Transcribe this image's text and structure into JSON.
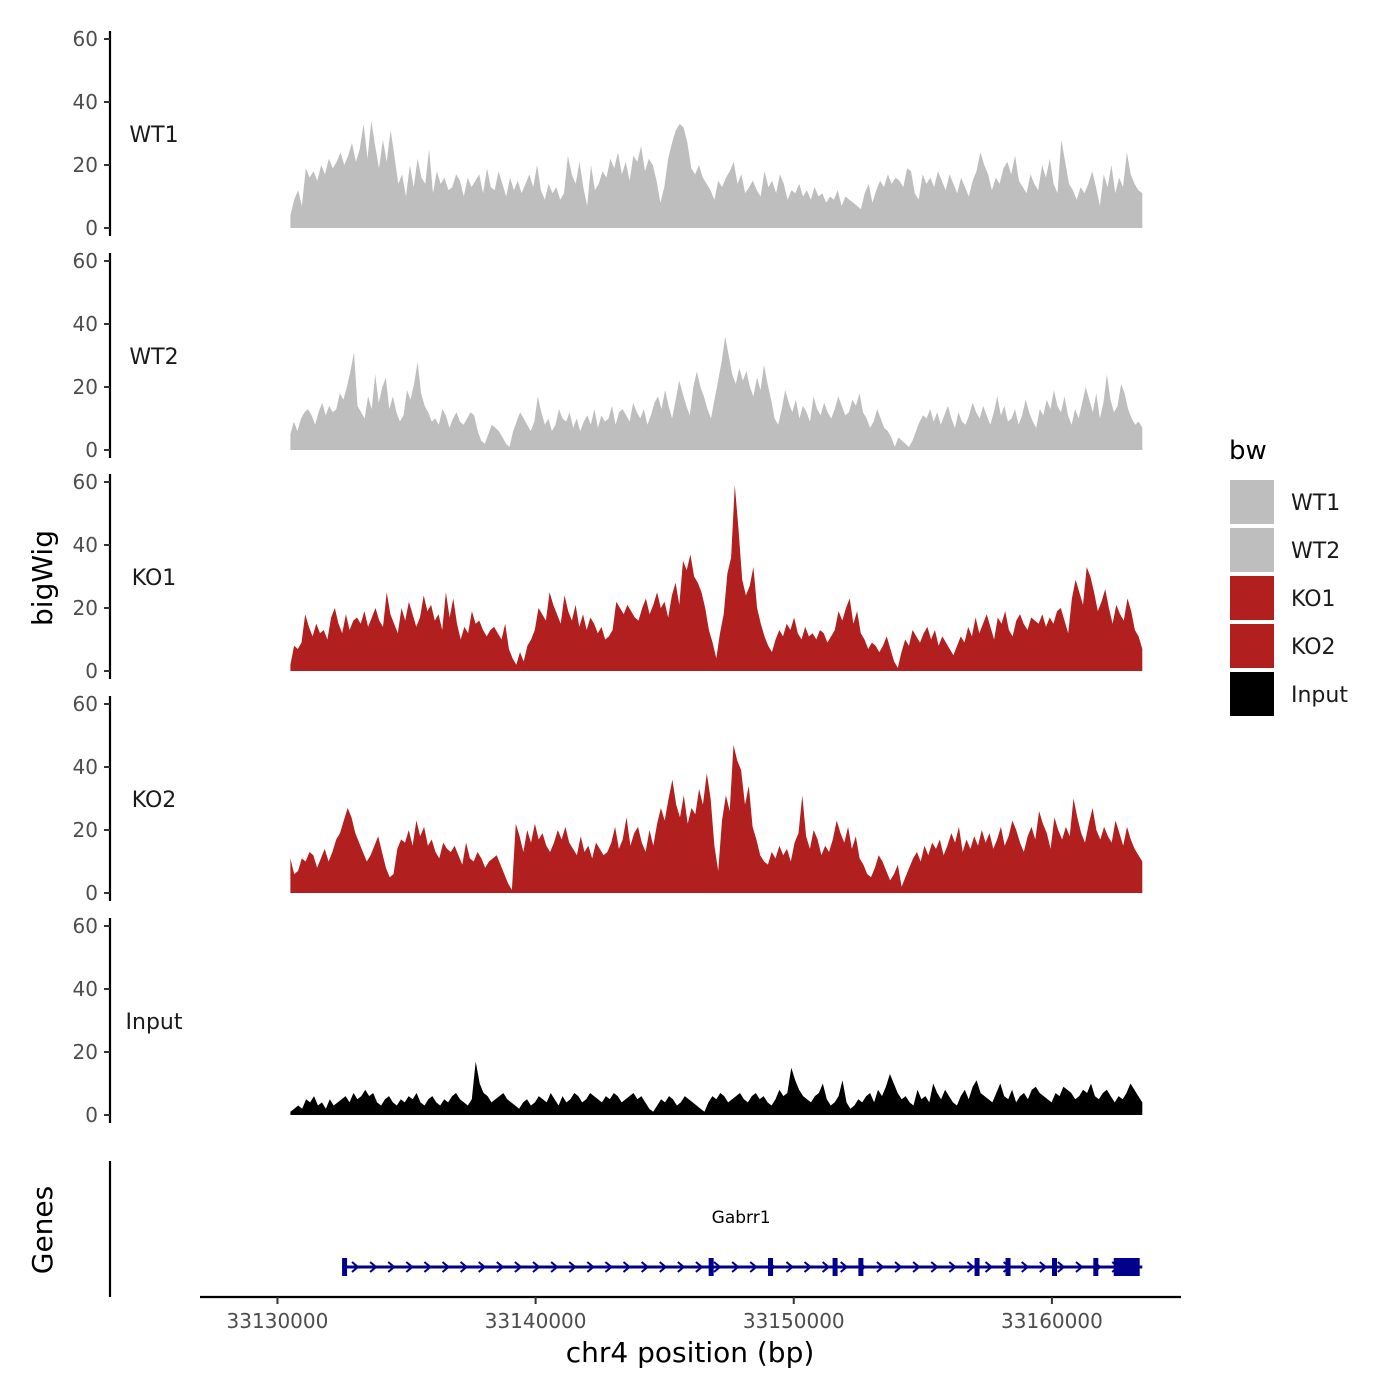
{
  "chart_data": {
    "type": "area",
    "title": "",
    "xlabel": "chr4 position (bp)",
    "ylabel": "bigWig",
    "genes_label": "Genes",
    "chromosome": "chr4",
    "xlim": [
      33127000,
      33165000
    ],
    "x_ticks": [
      33130000,
      33140000,
      33150000,
      33160000
    ],
    "x_tick_labels": [
      "33130000",
      "33140000",
      "33150000",
      "33160000"
    ],
    "ylim": [
      0,
      60
    ],
    "y_ticks": [
      0,
      20,
      40,
      60
    ],
    "y_tick_labels": [
      "0",
      "20",
      "40",
      "60"
    ],
    "track_start": 33130500,
    "track_end": 33163500,
    "legend": {
      "title": "bw",
      "position": "right",
      "entries": [
        {
          "label": "WT1",
          "color": "#bebebe"
        },
        {
          "label": "WT2",
          "color": "#bebebe"
        },
        {
          "label": "KO1",
          "color": "#b21f1f"
        },
        {
          "label": "KO2",
          "color": "#b21f1f"
        },
        {
          "label": "Input",
          "color": "#000000"
        }
      ]
    },
    "series": [
      {
        "name": "WT1",
        "color": "#bebebe",
        "values": [
          4,
          9,
          12,
          7,
          19,
          16,
          18,
          15,
          20,
          17,
          22,
          19,
          21,
          24,
          20,
          23,
          27,
          21,
          25,
          33,
          22,
          34,
          26,
          19,
          28,
          21,
          31,
          23,
          14,
          17,
          10,
          20,
          13,
          22,
          16,
          14,
          25,
          11,
          18,
          14,
          16,
          12,
          13,
          17,
          15,
          10,
          16,
          13,
          15,
          17,
          11,
          19,
          13,
          12,
          18,
          14,
          10,
          16,
          12,
          15,
          11,
          14,
          17,
          13,
          20,
          12,
          9,
          14,
          11,
          13,
          9,
          11,
          23,
          17,
          14,
          21,
          13,
          7,
          20,
          12,
          14,
          18,
          16,
          22,
          19,
          24,
          17,
          21,
          15,
          23,
          21,
          26,
          18,
          22,
          20,
          15,
          8,
          13,
          22,
          27,
          31,
          33,
          32,
          27,
          19,
          17,
          20,
          16,
          14,
          12,
          9,
          15,
          13,
          16,
          18,
          21,
          14,
          17,
          11,
          13,
          15,
          12,
          10,
          18,
          13,
          15,
          11,
          17,
          14,
          9,
          12,
          11,
          14,
          10,
          12,
          9,
          13,
          10,
          11,
          8,
          10,
          9,
          12,
          7,
          10,
          9,
          8,
          7,
          6,
          11,
          14,
          8,
          12,
          15,
          13,
          17,
          14,
          16,
          15,
          13,
          19,
          18,
          11,
          9,
          17,
          14,
          16,
          13,
          18,
          15,
          12,
          17,
          14,
          11,
          16,
          13,
          10,
          15,
          18,
          24,
          20,
          17,
          12,
          16,
          14,
          19,
          21,
          17,
          23,
          15,
          13,
          11,
          17,
          14,
          12,
          20,
          16,
          22,
          14,
          11,
          28,
          21,
          14,
          12,
          9,
          13,
          11,
          14,
          18,
          13,
          7,
          17,
          13,
          20,
          11,
          16,
          13,
          24,
          17,
          14,
          12,
          11
        ],
        "fill_label": "WT1"
      },
      {
        "name": "WT2",
        "color": "#bebebe",
        "values": [
          5,
          9,
          6,
          10,
          12,
          13,
          11,
          8,
          12,
          15,
          11,
          14,
          12,
          13,
          18,
          16,
          20,
          25,
          31,
          14,
          12,
          10,
          17,
          13,
          24,
          15,
          20,
          23,
          13,
          17,
          12,
          9,
          11,
          19,
          16,
          21,
          28,
          18,
          14,
          12,
          9,
          10,
          8,
          13,
          11,
          7,
          10,
          12,
          9,
          8,
          10,
          12,
          11,
          6,
          3,
          2,
          5,
          8,
          7,
          6,
          4,
          2,
          1,
          6,
          9,
          12,
          10,
          8,
          6,
          9,
          17,
          12,
          8,
          10,
          6,
          8,
          13,
          10,
          9,
          12,
          7,
          10,
          6,
          9,
          11,
          8,
          13,
          7,
          11,
          9,
          10,
          14,
          8,
          12,
          13,
          11,
          9,
          15,
          12,
          10,
          13,
          8,
          11,
          15,
          17,
          13,
          19,
          14,
          10,
          16,
          22,
          18,
          14,
          11,
          20,
          25,
          20,
          17,
          13,
          10,
          16,
          22,
          28,
          36,
          30,
          24,
          21,
          26,
          22,
          25,
          20,
          17,
          23,
          19,
          27,
          21,
          16,
          10,
          8,
          13,
          19,
          15,
          12,
          16,
          10,
          14,
          12,
          9,
          17,
          13,
          11,
          15,
          12,
          10,
          13,
          17,
          14,
          11,
          12,
          16,
          14,
          18,
          12,
          10,
          7,
          9,
          13,
          10,
          7,
          6,
          4,
          1,
          4,
          3,
          2,
          1,
          3,
          6,
          9,
          11,
          10,
          13,
          9,
          12,
          8,
          11,
          14,
          10,
          7,
          12,
          9,
          8,
          11,
          15,
          12,
          10,
          14,
          11,
          8,
          12,
          17,
          11,
          14,
          9,
          10,
          13,
          8,
          11,
          16,
          12,
          9,
          7,
          13,
          11,
          16,
          13,
          19,
          14,
          12,
          17,
          11,
          8,
          13,
          10,
          15,
          20,
          16,
          12,
          18,
          10,
          15,
          24,
          16,
          12,
          14,
          21,
          18,
          13,
          10,
          8,
          9,
          7
        ],
        "fill_label": "WT2"
      },
      {
        "name": "KO1",
        "color": "#b21f1f",
        "values": [
          2,
          8,
          7,
          9,
          18,
          14,
          11,
          15,
          12,
          13,
          10,
          17,
          20,
          15,
          12,
          18,
          13,
          16,
          17,
          15,
          19,
          14,
          17,
          20,
          16,
          14,
          25,
          18,
          15,
          12,
          20,
          16,
          22,
          18,
          14,
          17,
          24,
          19,
          21,
          16,
          18,
          13,
          25,
          17,
          23,
          15,
          10,
          14,
          12,
          19,
          15,
          16,
          13,
          11,
          13,
          14,
          12,
          10,
          15,
          7,
          4,
          2,
          6,
          3,
          8,
          10,
          13,
          20,
          18,
          16,
          25,
          21,
          18,
          15,
          24,
          19,
          16,
          21,
          14,
          18,
          13,
          17,
          15,
          12,
          14,
          10,
          11,
          13,
          22,
          20,
          18,
          21,
          19,
          17,
          16,
          20,
          23,
          18,
          21,
          25,
          20,
          22,
          17,
          24,
          28,
          21,
          35,
          32,
          37,
          30,
          28,
          25,
          20,
          13,
          9,
          4,
          12,
          18,
          31,
          36,
          59,
          45,
          29,
          24,
          27,
          33,
          20,
          15,
          11,
          8,
          6,
          10,
          13,
          11,
          15,
          13,
          17,
          12,
          10,
          14,
          11,
          12,
          10,
          13,
          12,
          9,
          11,
          13,
          19,
          16,
          20,
          23,
          15,
          19,
          12,
          10,
          7,
          9,
          8,
          6,
          8,
          11,
          7,
          3,
          1,
          6,
          10,
          8,
          13,
          11,
          9,
          12,
          14,
          10,
          13,
          8,
          11,
          9,
          7,
          5,
          8,
          11,
          9,
          14,
          11,
          17,
          12,
          15,
          18,
          14,
          10,
          17,
          15,
          19,
          13,
          11,
          16,
          18,
          15,
          13,
          17,
          16,
          15,
          18,
          14,
          17,
          15,
          19,
          20,
          16,
          12,
          23,
          29,
          25,
          21,
          33,
          30,
          25,
          19,
          22,
          26,
          20,
          15,
          21,
          18,
          16,
          23,
          19,
          13,
          11,
          7
        ],
        "fill_label": "KO1"
      },
      {
        "name": "KO2",
        "color": "#b21f1f",
        "values": [
          11,
          6,
          7,
          11,
          10,
          13,
          12,
          8,
          11,
          14,
          10,
          13,
          17,
          19,
          23,
          27,
          24,
          19,
          16,
          13,
          10,
          12,
          15,
          18,
          13,
          8,
          5,
          6,
          14,
          17,
          16,
          20,
          15,
          23,
          18,
          21,
          15,
          17,
          13,
          11,
          16,
          14,
          13,
          15,
          12,
          9,
          16,
          11,
          10,
          13,
          11,
          8,
          10,
          11,
          12,
          9,
          6,
          3,
          1,
          22,
          18,
          13,
          20,
          16,
          22,
          17,
          19,
          15,
          13,
          16,
          20,
          17,
          21,
          16,
          14,
          12,
          18,
          13,
          15,
          11,
          16,
          14,
          12,
          13,
          16,
          21,
          14,
          17,
          24,
          15,
          19,
          21,
          16,
          13,
          20,
          15,
          22,
          27,
          23,
          30,
          36,
          28,
          24,
          31,
          22,
          27,
          25,
          33,
          28,
          38,
          30,
          15,
          7,
          23,
          31,
          26,
          47,
          42,
          39,
          28,
          34,
          21,
          17,
          12,
          10,
          9,
          13,
          11,
          15,
          12,
          14,
          10,
          16,
          19,
          31,
          18,
          14,
          20,
          17,
          12,
          15,
          13,
          17,
          23,
          19,
          16,
          21,
          14,
          18,
          11,
          9,
          6,
          5,
          8,
          12,
          10,
          7,
          4,
          6,
          9,
          2,
          5,
          8,
          11,
          13,
          10,
          15,
          12,
          16,
          14,
          17,
          12,
          15,
          19,
          16,
          21,
          13,
          17,
          14,
          18,
          15,
          20,
          16,
          19,
          14,
          17,
          21,
          15,
          18,
          23,
          20,
          16,
          13,
          18,
          21,
          17,
          26,
          22,
          19,
          14,
          24,
          20,
          17,
          21,
          18,
          30,
          24,
          19,
          16,
          22,
          27,
          20,
          17,
          21,
          18,
          16,
          23,
          19,
          15,
          21,
          17,
          14,
          12,
          10
        ],
        "fill_label": "KO2"
      },
      {
        "name": "Input",
        "color": "#000000",
        "values": [
          1,
          2,
          3,
          2,
          5,
          4,
          6,
          3,
          4,
          2,
          5,
          3,
          4,
          5,
          6,
          4,
          7,
          5,
          6,
          8,
          6,
          7,
          4,
          3,
          5,
          6,
          4,
          3,
          5,
          4,
          6,
          5,
          7,
          4,
          3,
          5,
          6,
          4,
          3,
          5,
          4,
          6,
          7,
          5,
          4,
          3,
          5,
          17,
          10,
          7,
          6,
          4,
          5,
          6,
          7,
          5,
          4,
          3,
          2,
          4,
          5,
          3,
          4,
          6,
          5,
          4,
          7,
          5,
          3,
          6,
          4,
          5,
          7,
          6,
          4,
          5,
          7,
          6,
          5,
          4,
          6,
          5,
          7,
          6,
          4,
          5,
          6,
          7,
          5,
          6,
          4,
          2,
          1,
          3,
          5,
          4,
          6,
          5,
          3,
          4,
          6,
          5,
          4,
          3,
          2,
          1,
          4,
          6,
          5,
          7,
          6,
          4,
          5,
          6,
          7,
          5,
          4,
          6,
          7,
          5,
          6,
          4,
          3,
          5,
          8,
          6,
          7,
          15,
          11,
          8,
          6,
          5,
          4,
          6,
          7,
          10,
          5,
          3,
          4,
          6,
          11,
          4,
          2,
          3,
          5,
          4,
          6,
          7,
          4,
          8,
          6,
          9,
          13,
          10,
          7,
          5,
          6,
          4,
          3,
          8,
          5,
          6,
          4,
          10,
          7,
          5,
          8,
          6,
          4,
          3,
          6,
          8,
          5,
          9,
          11,
          7,
          6,
          5,
          4,
          7,
          10,
          6,
          5,
          8,
          4,
          6,
          7,
          5,
          8,
          9,
          7,
          6,
          5,
          4,
          7,
          6,
          9,
          8,
          7,
          5,
          6,
          8,
          7,
          10,
          6,
          5,
          7,
          8,
          6,
          4,
          6,
          5,
          7,
          10,
          8,
          6,
          4
        ]
      }
    ],
    "genes": [
      {
        "name": "Gabrr1",
        "start": 33132500,
        "end": 33163500,
        "strand": "+",
        "color": "#00008b",
        "exon_positions": [
          33132600,
          33146800,
          33149100,
          33151600,
          33152600,
          33157100,
          33158300,
          33160100,
          33161700,
          33162800,
          33163400
        ]
      }
    ]
  }
}
